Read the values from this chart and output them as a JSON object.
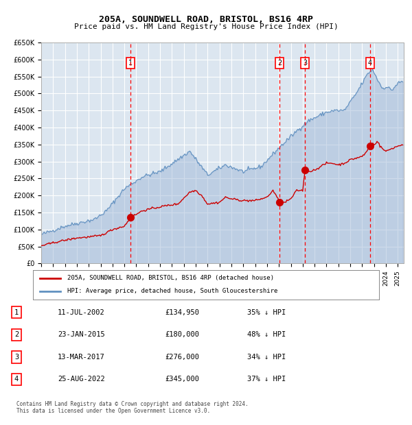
{
  "title": "205A, SOUNDWELL ROAD, BRISTOL, BS16 4RP",
  "subtitle": "Price paid vs. HM Land Registry's House Price Index (HPI)",
  "bg_color": "#dce6f0",
  "plot_bg_color": "#dce6f0",
  "hpi_color": "#a0b8d8",
  "price_color": "#cc0000",
  "grid_color": "#ffffff",
  "ylim": [
    0,
    650000
  ],
  "yticks": [
    0,
    50000,
    100000,
    150000,
    200000,
    250000,
    300000,
    350000,
    400000,
    450000,
    500000,
    550000,
    600000,
    650000
  ],
  "ytick_labels": [
    "£0",
    "£50K",
    "£100K",
    "£150K",
    "£200K",
    "£250K",
    "£300K",
    "£350K",
    "£400K",
    "£450K",
    "£500K",
    "£550K",
    "£600K",
    "£650K"
  ],
  "xlim_start": 1995.0,
  "xlim_end": 2025.5,
  "sale_dates": [
    2002.53,
    2015.07,
    2017.2,
    2022.65
  ],
  "sale_prices": [
    134950,
    180000,
    276000,
    345000
  ],
  "sale_labels": [
    "1",
    "2",
    "3",
    "4"
  ],
  "legend_price_label": "205A, SOUNDWELL ROAD, BRISTOL, BS16 4RP (detached house)",
  "legend_hpi_label": "HPI: Average price, detached house, South Gloucestershire",
  "table_entries": [
    {
      "num": "1",
      "date": "11-JUL-2002",
      "price": "£134,950",
      "pct": "35% ↓ HPI"
    },
    {
      "num": "2",
      "date": "23-JAN-2015",
      "price": "£180,000",
      "pct": "48% ↓ HPI"
    },
    {
      "num": "3",
      "date": "13-MAR-2017",
      "price": "£276,000",
      "pct": "34% ↓ HPI"
    },
    {
      "num": "4",
      "date": "25-AUG-2022",
      "price": "£345,000",
      "pct": "37% ↓ HPI"
    }
  ],
  "footer": "Contains HM Land Registry data © Crown copyright and database right 2024.\nThis data is licensed under the Open Government Licence v3.0."
}
